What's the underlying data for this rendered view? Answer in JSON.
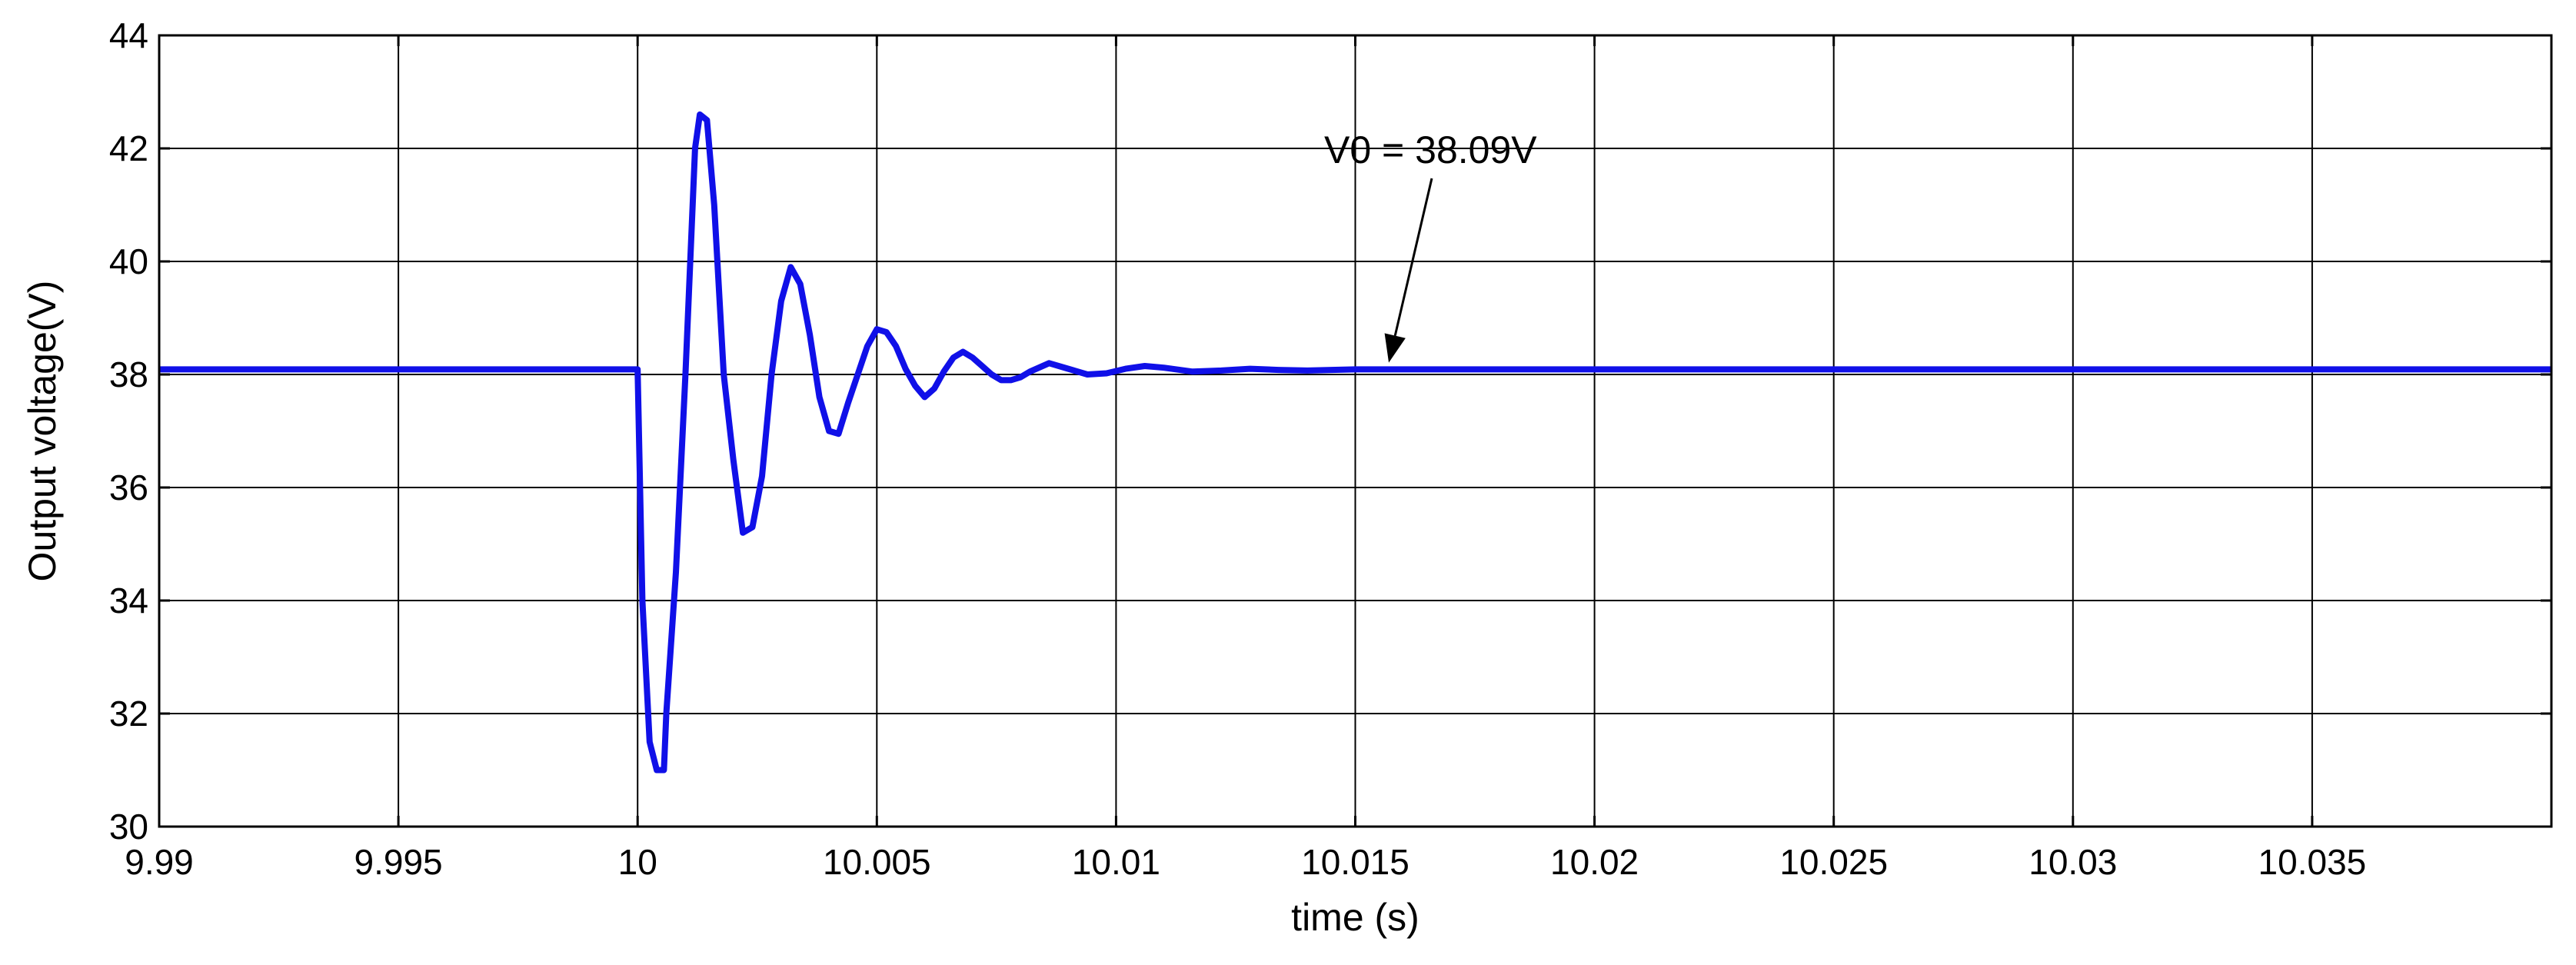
{
  "chart_data": {
    "type": "line",
    "xlabel": "time (s)",
    "ylabel": "Output voltage(V)",
    "xlim": [
      9.99,
      10.04
    ],
    "ylim": [
      30,
      44
    ],
    "xticks": [
      9.99,
      9.995,
      10,
      10.005,
      10.01,
      10.015,
      10.02,
      10.025,
      10.03,
      10.035
    ],
    "xtick_labels": [
      "9.99",
      "9.995",
      "10",
      "10.005",
      "10.01",
      "10.015",
      "10.02",
      "10.025",
      "10.03",
      "10.035"
    ],
    "yticks": [
      30,
      32,
      34,
      36,
      38,
      40,
      42,
      44
    ],
    "ytick_labels": [
      "30",
      "32",
      "34",
      "36",
      "38",
      "40",
      "42",
      "44"
    ],
    "grid": true,
    "line_color": "#1010e8",
    "series": [
      {
        "points": [
          [
            9.99,
            38.09
          ],
          [
            10.0,
            38.09
          ],
          [
            10.0001,
            34.0
          ],
          [
            10.00025,
            31.5
          ],
          [
            10.0004,
            31.0
          ],
          [
            10.00055,
            31.0
          ],
          [
            10.0006,
            32.0
          ],
          [
            10.0008,
            34.5
          ],
          [
            10.001,
            38.0
          ],
          [
            10.0012,
            42.0
          ],
          [
            10.0013,
            42.6
          ],
          [
            10.00145,
            42.5
          ],
          [
            10.0016,
            41.0
          ],
          [
            10.0018,
            38.0
          ],
          [
            10.002,
            36.5
          ],
          [
            10.0022,
            35.2
          ],
          [
            10.0024,
            35.3
          ],
          [
            10.0026,
            36.2
          ],
          [
            10.0028,
            38.0
          ],
          [
            10.003,
            39.3
          ],
          [
            10.0032,
            39.9
          ],
          [
            10.0034,
            39.6
          ],
          [
            10.0036,
            38.7
          ],
          [
            10.0038,
            37.6
          ],
          [
            10.004,
            37.0
          ],
          [
            10.0042,
            36.95
          ],
          [
            10.0044,
            37.5
          ],
          [
            10.0048,
            38.5
          ],
          [
            10.005,
            38.8
          ],
          [
            10.0052,
            38.75
          ],
          [
            10.0054,
            38.5
          ],
          [
            10.0056,
            38.1
          ],
          [
            10.0058,
            37.8
          ],
          [
            10.006,
            37.6
          ],
          [
            10.0062,
            37.75
          ],
          [
            10.0064,
            38.05
          ],
          [
            10.0066,
            38.3
          ],
          [
            10.0068,
            38.4
          ],
          [
            10.007,
            38.3
          ],
          [
            10.0072,
            38.15
          ],
          [
            10.0074,
            38.0
          ],
          [
            10.0076,
            37.9
          ],
          [
            10.0078,
            37.9
          ],
          [
            10.008,
            37.95
          ],
          [
            10.0082,
            38.05
          ],
          [
            10.0086,
            38.2
          ],
          [
            10.009,
            38.1
          ],
          [
            10.0094,
            38.0
          ],
          [
            10.0098,
            38.02
          ],
          [
            10.0102,
            38.1
          ],
          [
            10.0106,
            38.15
          ],
          [
            10.011,
            38.12
          ],
          [
            10.0116,
            38.05
          ],
          [
            10.0122,
            38.07
          ],
          [
            10.0128,
            38.1
          ],
          [
            10.0134,
            38.08
          ],
          [
            10.014,
            38.07
          ],
          [
            10.015,
            38.09
          ],
          [
            10.04,
            38.09
          ]
        ]
      }
    ],
    "annotation": {
      "text": "V0 = 38.09V",
      "arrow_to": [
        10.0157,
        38.1
      ]
    }
  }
}
